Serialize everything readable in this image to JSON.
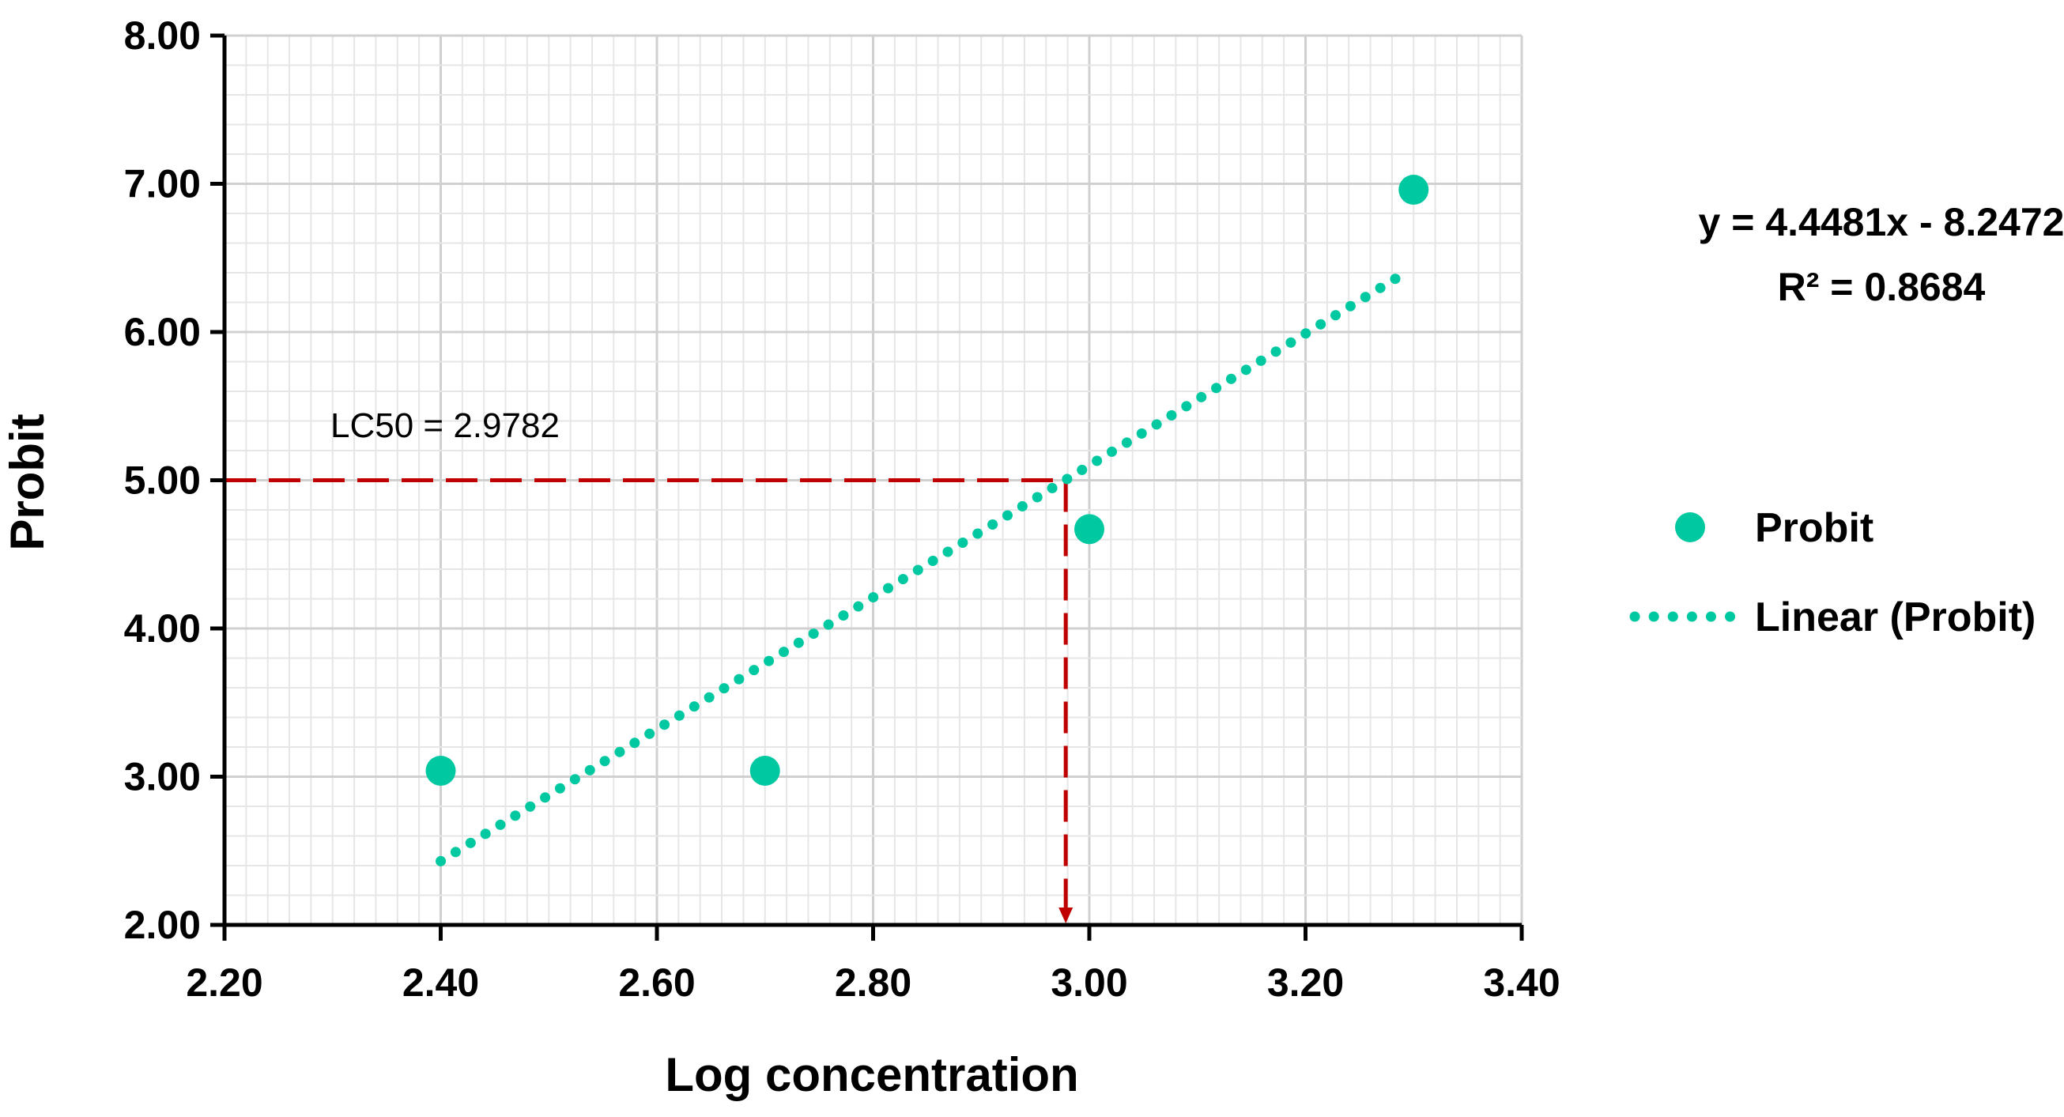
{
  "chart_data": {
    "type": "scatter",
    "xlabel": "Log concentration",
    "ylabel": "Probit",
    "xlim": [
      2.2,
      3.4
    ],
    "ylim": [
      2.0,
      8.0
    ],
    "x_ticks": [
      "2.20",
      "2.40",
      "2.60",
      "2.80",
      "3.00",
      "3.20",
      "3.40"
    ],
    "y_ticks": [
      "2.00",
      "3.00",
      "4.00",
      "5.00",
      "6.00",
      "7.00",
      "8.00"
    ],
    "grid": true,
    "series": [
      {
        "name": "Probit",
        "type": "scatter",
        "color": "#00c8a0",
        "x": [
          2.4,
          2.7,
          3.0,
          3.3
        ],
        "y": [
          3.04,
          3.04,
          4.67,
          6.96
        ]
      },
      {
        "name": "Linear (Probit)",
        "type": "line",
        "style": "dotted",
        "color": "#00c8a0",
        "x": [
          2.4,
          3.29
        ],
        "y": [
          2.43,
          6.39
        ]
      }
    ],
    "reference_lines": {
      "color": "#c00000",
      "style": "dashed",
      "y_value": 5.0,
      "x_value": 2.9782
    },
    "annotations": {
      "lc50": "LC50 = 2.9782",
      "equation": "y = 4.4481x - 8.2472",
      "r_squared": "R² = 0.8684"
    },
    "legend": {
      "position": "right",
      "entries": [
        "Probit",
        "Linear (Probit)"
      ]
    }
  }
}
